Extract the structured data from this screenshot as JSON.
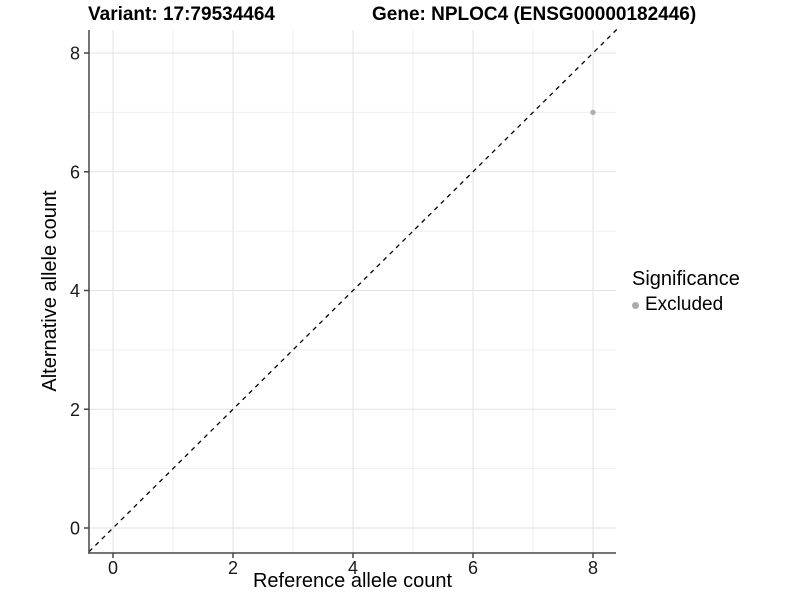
{
  "figure": {
    "title_left": "Variant: 17:79534464",
    "title_right": "Gene: NPLOC4 (ENSG00000182446)"
  },
  "chart_data": {
    "type": "scatter",
    "title_left": "Variant: 17:79534464",
    "title_right": "Gene: NPLOC4 (ENSG00000182446)",
    "xlabel": "Reference allele count",
    "ylabel": "Alternative allele count",
    "xlim": [
      -0.4,
      8.4
    ],
    "ylim": [
      -0.42,
      8.4
    ],
    "x_ticks": [
      0,
      2,
      4,
      6,
      8
    ],
    "y_ticks": [
      0,
      2,
      4,
      6,
      8
    ],
    "x_minor": [
      1,
      3,
      5,
      7
    ],
    "y_minor": [
      1,
      3,
      5,
      7
    ],
    "grid": true,
    "identity_line": {
      "slope": 1,
      "intercept": 0,
      "style": "dashed",
      "color": "#000000"
    },
    "series": [
      {
        "name": "Excluded",
        "color": "#afafaf",
        "points": [
          {
            "x": 8,
            "y": 7
          }
        ]
      }
    ],
    "legend": {
      "title": "Significance",
      "position": "right",
      "items": [
        {
          "label": "Excluded",
          "color": "#ababab"
        }
      ]
    },
    "colors": {
      "panel_background": "#ffffff",
      "grid_major": "#e2e2e2",
      "grid_minor": "#efefef",
      "axis_line": "#464646",
      "tick_label": "#1a1a1a",
      "point": "#afafaf"
    }
  }
}
